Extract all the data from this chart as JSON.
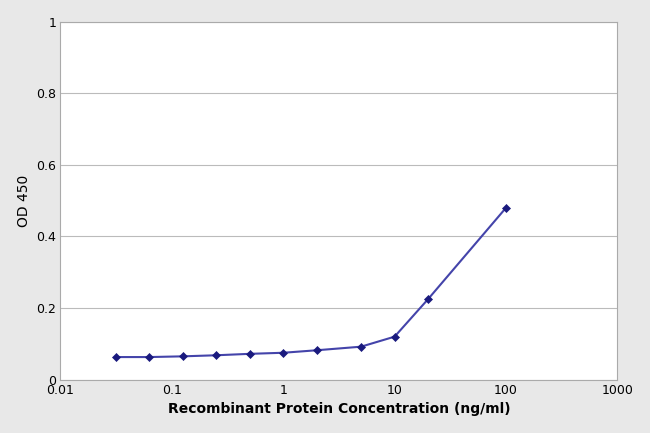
{
  "x_values": [
    0.03125,
    0.0625,
    0.125,
    0.25,
    0.5,
    1.0,
    2.0,
    5.0,
    10.0,
    20.0,
    100.0
  ],
  "y_values": [
    0.063,
    0.063,
    0.065,
    0.068,
    0.072,
    0.075,
    0.082,
    0.092,
    0.12,
    0.225,
    0.48
  ],
  "line_color": "#4444aa",
  "marker_color": "#1a1a7e",
  "marker_style": "D",
  "marker_size": 4,
  "line_width": 1.5,
  "xlabel": "Recombinant Protein Concentration (ng/ml)",
  "ylabel": "OD 450",
  "xlim": [
    0.01,
    1000
  ],
  "ylim": [
    0,
    1.0
  ],
  "yticks": [
    0,
    0.2,
    0.4,
    0.6,
    0.8,
    1.0
  ],
  "ytick_labels": [
    "0",
    "0.2",
    "0.4",
    "0.6",
    "0.8",
    "1"
  ],
  "xtick_labels": [
    "0.01",
    "0.1",
    "1",
    "10",
    "100",
    "1000"
  ],
  "xtick_values": [
    0.01,
    0.1,
    1,
    10,
    100,
    1000
  ],
  "figure_bg_color": "#e8e8e8",
  "plot_bg_color": "#ffffff",
  "grid_color": "#bbbbbb",
  "spine_color": "#aaaaaa",
  "xlabel_fontsize": 10,
  "ylabel_fontsize": 10,
  "tick_fontsize": 9,
  "xlabel_fontweight": "bold",
  "ylabel_fontweight": "normal"
}
